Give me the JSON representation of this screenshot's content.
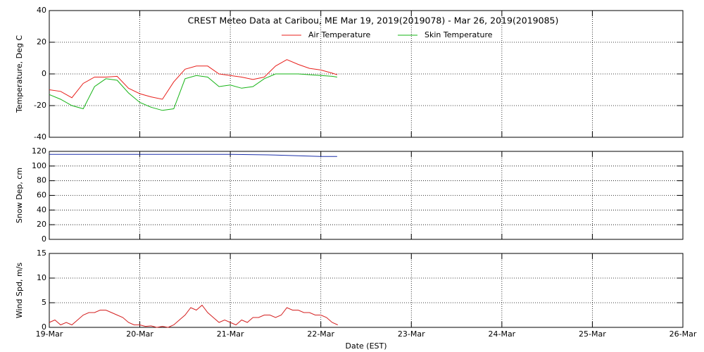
{
  "chart_data": [
    {
      "type": "line",
      "title": "CREST Meteo Data at Caribou, ME   Mar 19, 2019(2019078) - Mar 26, 2019(2019085)",
      "y_label": "Temperature, Deg C",
      "x": [
        0,
        0.125,
        0.25,
        0.375,
        0.5,
        0.625,
        0.75,
        0.875,
        1,
        1.125,
        1.25,
        1.375,
        1.5,
        1.625,
        1.75,
        1.875,
        2,
        2.125,
        2.25,
        2.375,
        2.5,
        2.625,
        2.75,
        2.875,
        3,
        3.125,
        3.18
      ],
      "series": [
        {
          "name": "Air Temperature",
          "color": "#e8201c",
          "values": [
            -10,
            -11,
            -15,
            -6,
            -2,
            -2,
            -1.5,
            -9,
            -12.5,
            -14.5,
            -16,
            -5,
            3,
            5,
            5,
            0,
            -1,
            -2,
            -3.5,
            -2,
            5,
            9,
            6,
            3.5,
            2.5,
            0.5,
            -0.5
          ]
        },
        {
          "name": "Skin Temperature",
          "color": "#16b416",
          "values": [
            -13,
            -16,
            -20,
            -22,
            -8,
            -3,
            -4,
            -12,
            -18,
            -21,
            -23,
            -22,
            -3,
            -1,
            -2,
            -8,
            -7,
            -9,
            -8,
            -3,
            0,
            0,
            0,
            -0.5,
            -1,
            -1.5,
            -2
          ]
        }
      ],
      "xlim": [
        0,
        7
      ],
      "xticks": [
        0,
        1,
        2,
        3,
        4,
        5,
        6,
        7
      ],
      "ylim": [
        -40,
        40
      ],
      "yticks": [
        -40,
        -20,
        0,
        20,
        40
      ],
      "grid": true
    },
    {
      "type": "line",
      "y_label": "Snow Dep, cm",
      "x": [
        0,
        1,
        2,
        2.5,
        3,
        3.18
      ],
      "values": [
        116,
        116,
        116,
        115,
        113,
        113
      ],
      "color": "#1a2ea8",
      "xlim": [
        0,
        7
      ],
      "xticks": [
        0,
        1,
        2,
        3,
        4,
        5,
        6,
        7
      ],
      "ylim": [
        0,
        120
      ],
      "yticks": [
        0,
        20,
        40,
        60,
        80,
        100,
        120
      ],
      "grid": true
    },
    {
      "type": "line",
      "y_label": "Wind Spd, m/s",
      "x_label": "Date (EST)",
      "x": [
        0,
        0.0625,
        0.125,
        0.1875,
        0.25,
        0.3125,
        0.375,
        0.4375,
        0.5,
        0.5625,
        0.625,
        0.6875,
        0.75,
        0.8125,
        0.875,
        0.9375,
        1,
        1.0625,
        1.125,
        1.1875,
        1.25,
        1.3125,
        1.375,
        1.4375,
        1.5,
        1.5625,
        1.625,
        1.6875,
        1.75,
        1.8125,
        1.875,
        1.9375,
        2,
        2.0625,
        2.125,
        2.1875,
        2.25,
        2.3125,
        2.375,
        2.4375,
        2.5,
        2.5625,
        2.625,
        2.6875,
        2.75,
        2.8125,
        2.875,
        2.9375,
        3,
        3.0625,
        3.125,
        3.1875
      ],
      "values": [
        1,
        1.5,
        0.5,
        1,
        0.5,
        1.5,
        2.5,
        3,
        3,
        3.5,
        3.5,
        3,
        2.5,
        2,
        1,
        0.5,
        0.5,
        0.2,
        0.3,
        0,
        0.2,
        0,
        0.5,
        1.5,
        2.5,
        4,
        3.5,
        4.5,
        3,
        2,
        1,
        1.5,
        1,
        0.5,
        1.5,
        1,
        2,
        2,
        2.5,
        2.5,
        2,
        2.5,
        4,
        3.5,
        3.5,
        3,
        3,
        2.5,
        2.5,
        2,
        1,
        0.5
      ],
      "color": "#d42020",
      "xlim": [
        0,
        7
      ],
      "xticks": [
        {
          "value": 0,
          "label": "19-Mar"
        },
        {
          "value": 1,
          "label": "20-Mar"
        },
        {
          "value": 2,
          "label": "21-Mar"
        },
        {
          "value": 3,
          "label": "22-Mar"
        },
        {
          "value": 4,
          "label": "23-Mar"
        },
        {
          "value": 5,
          "label": "24-Mar"
        },
        {
          "value": 6,
          "label": "25-Mar"
        },
        {
          "value": 7,
          "label": "26-Mar"
        }
      ],
      "ylim": [
        0,
        15
      ],
      "yticks": [
        0,
        5,
        10,
        15
      ],
      "grid": true
    }
  ]
}
